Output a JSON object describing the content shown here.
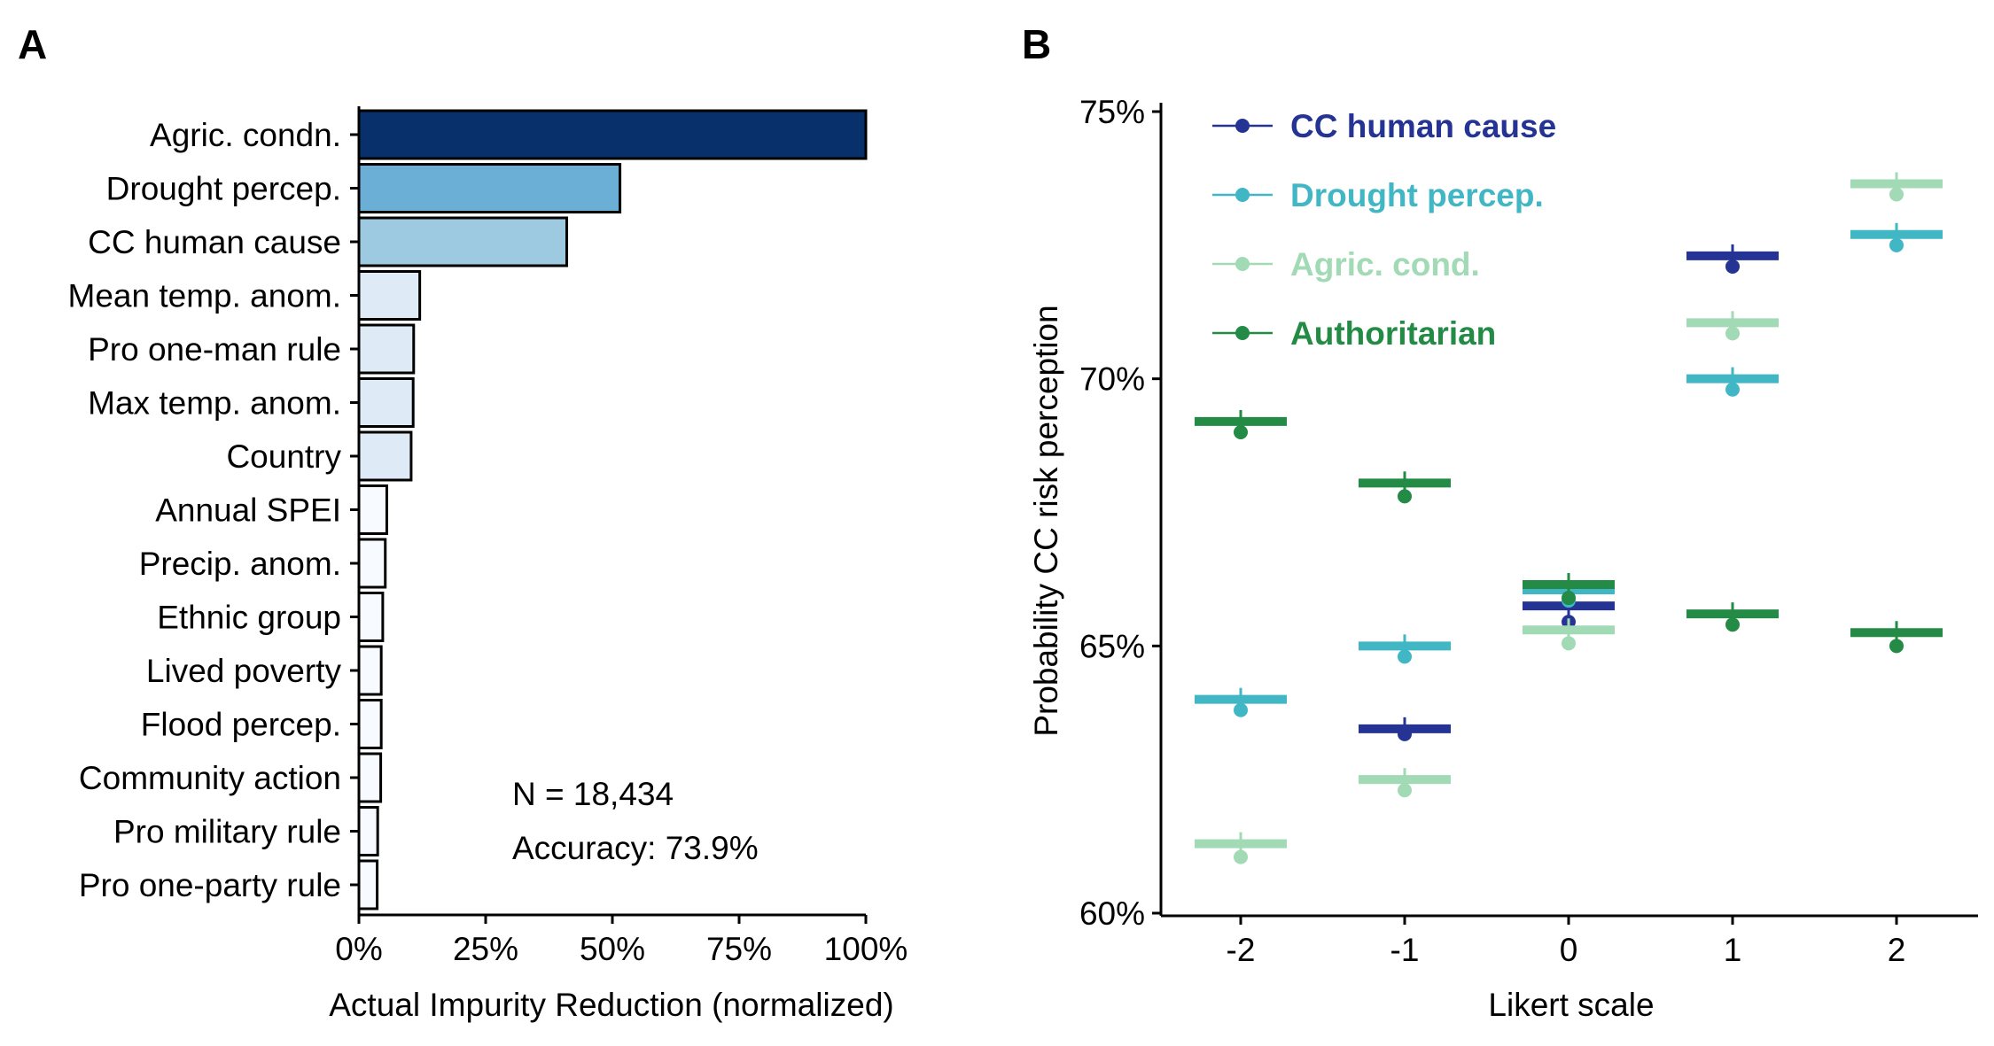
{
  "chart_data": [
    {
      "panel_label": "A",
      "type": "bar",
      "orientation": "horizontal",
      "categories": [
        "Agric. condn.",
        "Drought percep.",
        "CC human cause",
        "Mean temp. anom.",
        "Pro one-man rule",
        "Max temp. anom.",
        "Country",
        "Annual SPEI",
        "Precip. anom.",
        "Ethnic group",
        "Lived poverty",
        "Flood percep.",
        "Community action",
        "Pro military rule",
        "Pro one-party rule"
      ],
      "values": [
        100,
        51.5,
        41,
        12,
        10.8,
        10.7,
        10.3,
        5.5,
        5.2,
        4.7,
        4.4,
        4.4,
        4.3,
        3.7,
        3.6
      ],
      "bar_colors": [
        "#08306b",
        "#6baed6",
        "#9ecae1",
        "#deebf7",
        "#deebf7",
        "#deebf7",
        "#deebf7",
        "#f7fbff",
        "#f7fbff",
        "#f7fbff",
        "#f7fbff",
        "#f7fbff",
        "#f7fbff",
        "#f7fbff",
        "#f7fbff"
      ],
      "xlabel": "Actual Impurity Reduction (normalized)",
      "xlim": [
        0,
        100
      ],
      "xticks": [
        "0%",
        "25%",
        "50%",
        "75%",
        "100%"
      ],
      "annotations": [
        "N = 18,434",
        "Accuracy: 73.9%"
      ]
    },
    {
      "panel_label": "B",
      "type": "scatter",
      "x": [
        -2,
        -1,
        0,
        1,
        2
      ],
      "xticks": [
        "-2",
        "-1",
        "0",
        "1",
        "2"
      ],
      "xlabel": "Likert scale",
      "ylabel": "Probability CC risk perception",
      "ylim": [
        60,
        75
      ],
      "yticks": [
        "60%",
        "65%",
        "70%",
        "75%"
      ],
      "legend_position": "top-left",
      "series": [
        {
          "name": "CC human cause",
          "color": "#253494",
          "x": [
            -1,
            0,
            1
          ],
          "points": [
            63.35,
            65.45,
            72.1
          ],
          "bars": [
            63.45,
            65.75,
            72.3
          ]
        },
        {
          "name": "Drought percep.",
          "color": "#41b6c4",
          "x": [
            -2,
            -1,
            0,
            1,
            2
          ],
          "points": [
            63.8,
            64.8,
            65.85,
            69.8,
            72.5
          ],
          "bars": [
            64.0,
            65.0,
            66.05,
            70.0,
            72.7
          ]
        },
        {
          "name": "Agric. cond.",
          "color": "#a1dab4",
          "x": [
            -2,
            -1,
            0,
            1,
            2
          ],
          "points": [
            61.05,
            62.3,
            65.05,
            70.85,
            73.45
          ],
          "bars": [
            61.3,
            62.5,
            65.3,
            71.05,
            73.65
          ]
        },
        {
          "name": "Authoritarian",
          "color": "#238b45",
          "x": [
            -2,
            -1,
            0,
            1,
            2
          ],
          "points": [
            69.0,
            67.8,
            65.9,
            65.4,
            65.0
          ],
          "bars": [
            69.2,
            68.05,
            66.15,
            65.6,
            65.25
          ]
        }
      ]
    }
  ]
}
